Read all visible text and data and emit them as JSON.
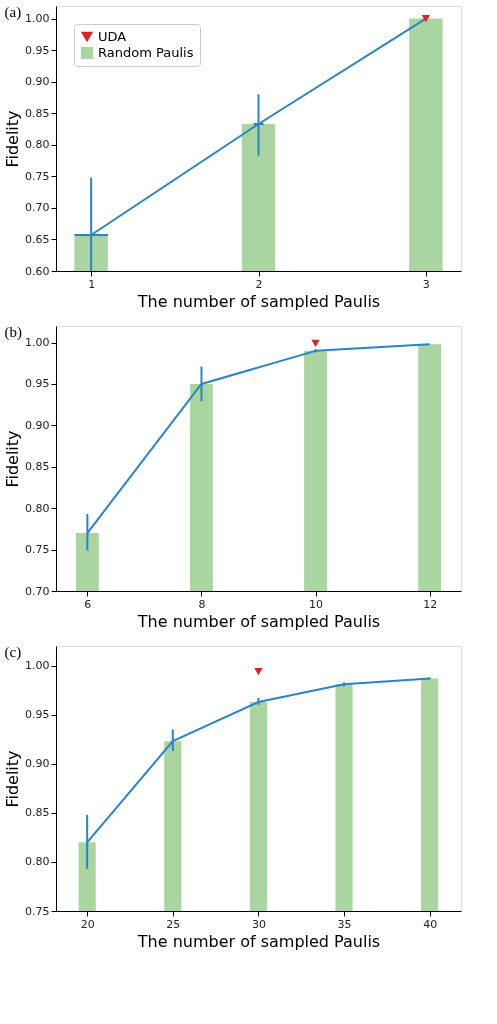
{
  "chart_data": [
    {
      "type": "bar",
      "title": "(a)",
      "xlabel": "The number of sampled Paulis",
      "ylabel": "Fidelity",
      "x": [
        1,
        2,
        3
      ],
      "xlim": [
        0.79,
        3.21
      ],
      "xticks": [
        1,
        2,
        3
      ],
      "ylim": [
        0.6,
        1.02
      ],
      "yticks": [
        {
          "value": 0.6,
          "label": "0.60"
        },
        0.65,
        {
          "value": 0.7,
          "label": "0.70"
        },
        0.75,
        {
          "value": 0.8,
          "label": "0.80"
        },
        0.85,
        {
          "value": 0.9,
          "label": "0.90"
        },
        0.95,
        {
          "value": 1.0,
          "label": "1.00"
        }
      ],
      "grid": false,
      "legend": "top left",
      "series": [
        {
          "name": "UDA",
          "type": "scatter",
          "color": "#d62728",
          "marker": "triangle",
          "x": [
            3
          ],
          "values": [
            1.0
          ]
        },
        {
          "name": "Random Paulis",
          "type": "bar",
          "color": "#aad5a0",
          "values": [
            0.657,
            0.833,
            1.0
          ]
        },
        {
          "type": "line",
          "color": "#2b83c4",
          "marker": "none",
          "line_style": "solid",
          "values": [
            0.657,
            0.833,
            1.0
          ],
          "errors": [
            [
              0.6,
              0.748
            ],
            [
              0.783,
              0.88
            ],
            null
          ],
          "xerrors": [
            0.1,
            0.03,
            null
          ]
        }
      ]
    },
    {
      "type": "bar",
      "title": "(b)",
      "xlabel": "The number of sampled Paulis",
      "ylabel": "Fidelity",
      "x": [
        6,
        8,
        10,
        12
      ],
      "xlim": [
        5.45,
        12.55
      ],
      "xticks": [
        6,
        8,
        10,
        12
      ],
      "ylim": [
        0.7,
        1.02
      ],
      "yticks": [
        {
          "value": 0.7,
          "label": "0.70"
        },
        0.75,
        {
          "value": 0.8,
          "label": "0.80"
        },
        0.85,
        {
          "value": 0.9,
          "label": "0.90"
        },
        0.95,
        {
          "value": 1.0,
          "label": "1.00"
        }
      ],
      "grid": false,
      "legend": false,
      "series": [
        {
          "name": "UDA",
          "type": "scatter",
          "color": "#d62728",
          "marker": "triangle",
          "x": [
            10
          ],
          "values": [
            0.999
          ]
        },
        {
          "name": "Random Paulis",
          "type": "bar",
          "color": "#aad5a0",
          "values": [
            0.77,
            0.95,
            0.99,
            0.998
          ]
        },
        {
          "type": "line",
          "color": "#2b83c4",
          "marker": "none",
          "line_style": "solid",
          "values": [
            0.77,
            0.95,
            0.99,
            0.998
          ],
          "errors": [
            [
              0.749,
              0.793
            ],
            [
              0.929,
              0.971
            ],
            0.002,
            null
          ]
        }
      ]
    },
    {
      "type": "bar",
      "title": "(c)",
      "xlabel": "The number of sampled Paulis",
      "ylabel": "Fidelity",
      "x": [
        20,
        25,
        30,
        35,
        40
      ],
      "xlim": [
        18.18,
        41.83
      ],
      "xticks": [
        20,
        25,
        30,
        35,
        40
      ],
      "ylim": [
        0.75,
        1.02
      ],
      "yticks": [
        0.75,
        {
          "value": 0.8,
          "label": "0.80"
        },
        0.85,
        {
          "value": 0.9,
          "label": "0.90"
        },
        0.95,
        {
          "value": 1.0,
          "label": "1.00"
        }
      ],
      "grid": false,
      "legend": false,
      "series": [
        {
          "name": "UDA",
          "type": "scatter",
          "color": "#d62728",
          "marker": "triangle",
          "x": [
            30
          ],
          "values": [
            0.994
          ]
        },
        {
          "name": "Random Paulis",
          "type": "bar",
          "color": "#aad5a0",
          "values": [
            0.82,
            0.923,
            0.963,
            0.981,
            0.987
          ]
        },
        {
          "type": "line",
          "color": "#2b83c4",
          "marker": "none",
          "line_style": "solid",
          "values": [
            0.82,
            0.923,
            0.963,
            0.981,
            0.987
          ],
          "errors": [
            [
              0.793,
              0.848
            ],
            [
              0.913,
              0.935
            ],
            [
              0.96,
              0.967
            ],
            0.002,
            0.001
          ]
        }
      ]
    }
  ]
}
